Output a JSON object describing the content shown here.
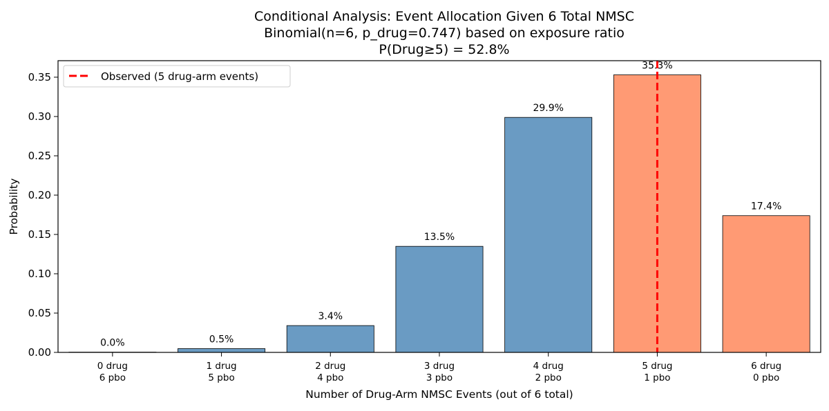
{
  "chart_data": {
    "type": "bar",
    "title_lines": [
      "Conditional Analysis: Event Allocation Given 6 Total NMSC",
      "Binomial(n=6, p_drug=0.747) based on exposure ratio",
      "P(Drug≥5) = 52.8%"
    ],
    "xlabel": "Number of Drug-Arm NMSC Events (out of 6 total)",
    "ylabel": "Probability",
    "ylim": [
      0,
      0.371
    ],
    "yticks": [
      {
        "value": 0.0,
        "label": "0.00"
      },
      {
        "value": 0.05,
        "label": "0.05"
      },
      {
        "value": 0.1,
        "label": "0.10"
      },
      {
        "value": 0.15,
        "label": "0.15"
      },
      {
        "value": 0.2,
        "label": "0.20"
      },
      {
        "value": 0.25,
        "label": "0.25"
      },
      {
        "value": 0.3,
        "label": "0.30"
      },
      {
        "value": 0.35,
        "label": "0.35"
      }
    ],
    "categories": [
      {
        "line1": "0 drug",
        "line2": "6 pbo"
      },
      {
        "line1": "1 drug",
        "line2": "5 pbo"
      },
      {
        "line1": "2 drug",
        "line2": "4 pbo"
      },
      {
        "line1": "3 drug",
        "line2": "3 pbo"
      },
      {
        "line1": "4 drug",
        "line2": "2 pbo"
      },
      {
        "line1": "5 drug",
        "line2": "1 pbo"
      },
      {
        "line1": "6 drug",
        "line2": "0 pbo"
      }
    ],
    "values": [
      0.0003,
      0.0048,
      0.0341,
      0.1349,
      0.2989,
      0.353,
      0.1739
    ],
    "data_labels": [
      "0.0%",
      "0.5%",
      "3.4%",
      "13.5%",
      "29.9%",
      "35.3%",
      "17.4%"
    ],
    "bar_colors": [
      "#6a9bc3",
      "#6a9bc3",
      "#6a9bc3",
      "#6a9bc3",
      "#6a9bc3",
      "#ff9a74",
      "#ff9a74"
    ],
    "observed_line": {
      "x_index": 5,
      "color": "#ff0000",
      "label": "Observed (5 drug-arm events)"
    },
    "legend_position": "upper-left",
    "grid": false
  }
}
